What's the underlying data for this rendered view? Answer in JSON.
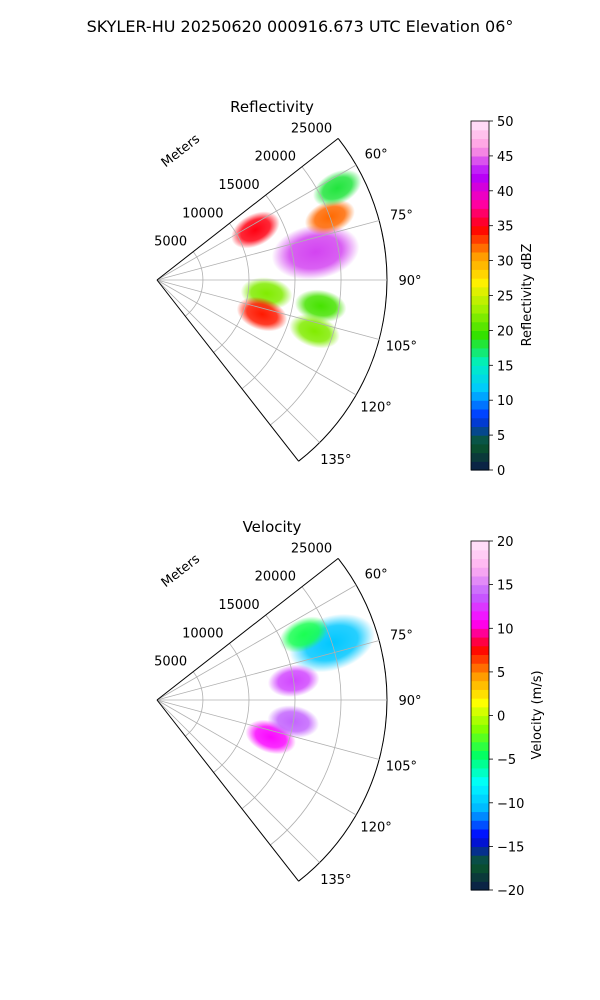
{
  "title": "SKYLER-HU  20250620  000916.673 UTC Elevation 06°",
  "chart_data": [
    {
      "type": "polar-ppi",
      "title": "Reflectivity",
      "radial_axis_label": "Meters",
      "r_ticks": [
        "5000",
        "10000",
        "15000",
        "20000",
        "25000"
      ],
      "r_max": 25000,
      "theta_ticks": [
        "60°",
        "75°",
        "90°",
        "105°",
        "120°",
        "135°"
      ],
      "theta_range": [
        52,
        142
      ],
      "grid": true,
      "colorbar": {
        "label": "Reflectivity dBZ",
        "range": [
          0,
          50
        ],
        "ticks": [
          "0",
          "5",
          "10",
          "15",
          "20",
          "25",
          "30",
          "35",
          "40",
          "45",
          "50"
        ],
        "colormap": [
          "#0b1a4a",
          "#0a5a2a",
          "#0033ff",
          "#00c8ff",
          "#00f0c0",
          "#30e000",
          "#a0f000",
          "#fff000",
          "#ff9a00",
          "#ff0000",
          "#ff00b0",
          "#b000ff",
          "#ff9ae0",
          "#ffe6fa"
        ]
      },
      "echoes": [
        {
          "range_m": 17500,
          "azimuth_deg": 80,
          "dbz": 44,
          "extent": "core of main cell"
        },
        {
          "range_m": 20000,
          "azimuth_deg": 70,
          "dbz": 32
        },
        {
          "range_m": 22000,
          "azimuth_deg": 63,
          "dbz": 18
        },
        {
          "range_m": 12000,
          "azimuth_deg": 63,
          "dbz": 35
        },
        {
          "range_m": 12000,
          "azimuth_deg": 97,
          "dbz": 22
        },
        {
          "range_m": 12000,
          "azimuth_deg": 108,
          "dbz": 34
        },
        {
          "range_m": 18000,
          "azimuth_deg": 99,
          "dbz": 20
        },
        {
          "range_m": 18000,
          "azimuth_deg": 108,
          "dbz": 22
        }
      ]
    },
    {
      "type": "polar-ppi",
      "title": "Velocity",
      "radial_axis_label": "Meters",
      "r_ticks": [
        "5000",
        "10000",
        "15000",
        "20000",
        "25000"
      ],
      "r_max": 25000,
      "theta_ticks": [
        "60°",
        "75°",
        "90°",
        "105°",
        "120°",
        "135°"
      ],
      "theta_range": [
        52,
        142
      ],
      "grid": true,
      "colorbar": {
        "label": "Velocity (m/s)",
        "range": [
          -20,
          20
        ],
        "ticks": [
          "−20",
          "−15",
          "−10",
          "−5",
          "0",
          "5",
          "10",
          "15",
          "20"
        ],
        "colormap": [
          "#0b1a4a",
          "#0a5a2a",
          "#0000ff",
          "#00b4ff",
          "#00ffff",
          "#00ff66",
          "#80ff00",
          "#ffff00",
          "#ff9900",
          "#ff0000",
          "#ff00ff",
          "#c060ff",
          "#ffb0f0",
          "#ffe6fa"
        ]
      },
      "echoes": [
        {
          "range_m": 20000,
          "azimuth_deg": 72,
          "velocity_ms": -10,
          "extent": "approaching region"
        },
        {
          "range_m": 15000,
          "azimuth_deg": 82,
          "velocity_ms": 13
        },
        {
          "range_m": 13000,
          "azimuth_deg": 108,
          "velocity_ms": 11
        },
        {
          "range_m": 15000,
          "azimuth_deg": 99,
          "velocity_ms": 14
        },
        {
          "range_m": 17500,
          "azimuth_deg": 66,
          "velocity_ms": -4
        }
      ]
    }
  ]
}
